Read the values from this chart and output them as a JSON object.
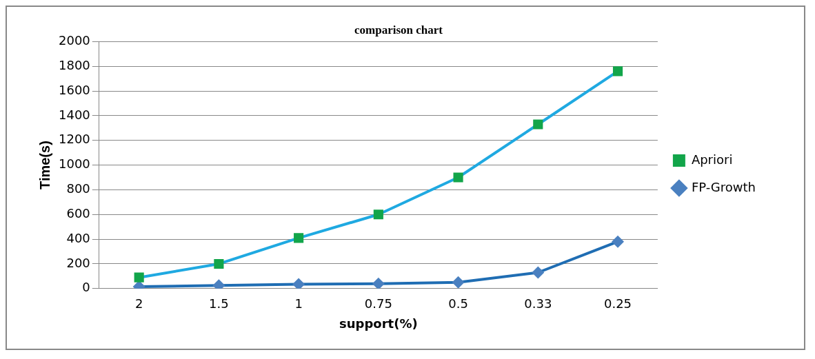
{
  "chart_data": {
    "type": "line",
    "title": "comparison chart",
    "xlabel": "support(%)",
    "ylabel": "Time(s)",
    "categories": [
      "2",
      "1.5",
      "1",
      "0.75",
      "0.5",
      "0.33",
      "0.25"
    ],
    "series": [
      {
        "name": "Apriori",
        "color": "#1fa9e1",
        "marker": "square",
        "colors": [
          "#12a54a",
          "#12a54a",
          "#12a54a",
          "#12a54a",
          "#12a54a",
          "#12a54a",
          "#12a54a"
        ],
        "values": [
          90,
          200,
          410,
          600,
          900,
          1330,
          1760
        ]
      },
      {
        "name": "FP-Growth",
        "color": "#1f6db3",
        "marker": "diamond",
        "colors": [
          "#4a80c0",
          "#4a80c0",
          "#4a80c0",
          "#4a80c0",
          "#4a80c0",
          "#4a80c0",
          "#4a80c0"
        ],
        "values": [
          15,
          25,
          35,
          40,
          50,
          130,
          380
        ]
      }
    ],
    "ylim": [
      0,
      2000
    ],
    "yticks": [
      0,
      200,
      400,
      600,
      800,
      1000,
      1200,
      1400,
      1600,
      1800,
      2000
    ],
    "grid": "y",
    "legend": "right"
  }
}
